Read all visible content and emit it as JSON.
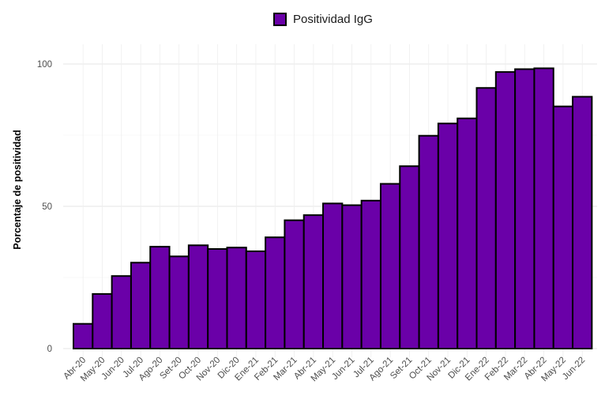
{
  "chart_data": {
    "type": "bar",
    "categories": [
      "Abr-20",
      "May-20",
      "Jun-20",
      "Jul-20",
      "Ago-20",
      "Set-20",
      "Oct-20",
      "Nov-20",
      "Dic-20",
      "Ene-21",
      "Feb-21",
      "Mar-21",
      "Abr-21",
      "May-21",
      "Jun-21",
      "Jul-21",
      "Ago-21",
      "Set-21",
      "Oct-21",
      "Nov-21",
      "Dic-21",
      "Ene-22",
      "Feb-22",
      "Mar-22",
      "Abr-22",
      "May-22",
      "Jun-22"
    ],
    "series": [
      {
        "name": "Positividad IgG",
        "values": [
          8.7,
          19.2,
          25.5,
          30.2,
          35.8,
          32.4,
          36.3,
          35.0,
          35.5,
          34.2,
          39.1,
          45.1,
          46.9,
          51.0,
          50.4,
          52.0,
          57.9,
          64.1,
          74.8,
          79.1,
          80.9,
          91.6,
          97.2,
          98.2,
          98.5,
          85.1,
          88.5
        ],
        "color": "#6a00a8"
      }
    ],
    "xlabel": "",
    "ylabel": "Porcentaje de positividad",
    "ylim": [
      0,
      100
    ],
    "yticks": [
      0,
      50,
      100
    ],
    "grid": true,
    "legend": "top"
  }
}
